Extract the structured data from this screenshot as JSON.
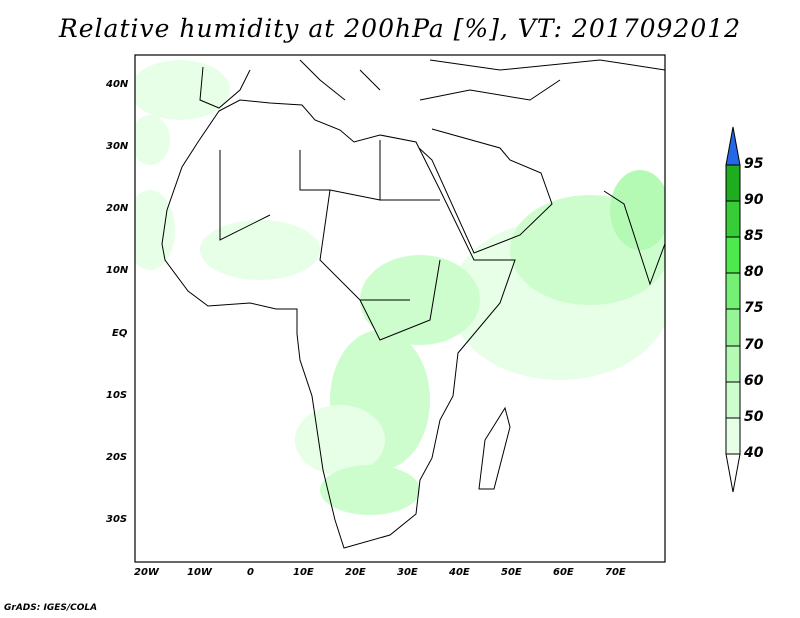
{
  "title": "Relative humidity at 200hPa [%], VT: 2017092012",
  "credit": "GrADS: IGES/COLA",
  "lat_labels": [
    "40N",
    "30N",
    "20N",
    "10N",
    "EQ",
    "10S",
    "20S",
    "30S"
  ],
  "lon_labels": [
    "20W",
    "10W",
    "0",
    "10E",
    "20E",
    "30E",
    "40E",
    "50E",
    "60E",
    "70E"
  ],
  "colorbar": {
    "levels": [
      "95",
      "90",
      "85",
      "80",
      "75",
      "70",
      "60",
      "50",
      "40"
    ],
    "colors": [
      "#1ead1e",
      "#37cd37",
      "#4ee94e",
      "#75f075",
      "#97f597",
      "#b4fab4",
      "#cdfdcd",
      "#e6ffe6"
    ],
    "over_color": "#2468e8",
    "under_color": "#ffffff"
  }
}
